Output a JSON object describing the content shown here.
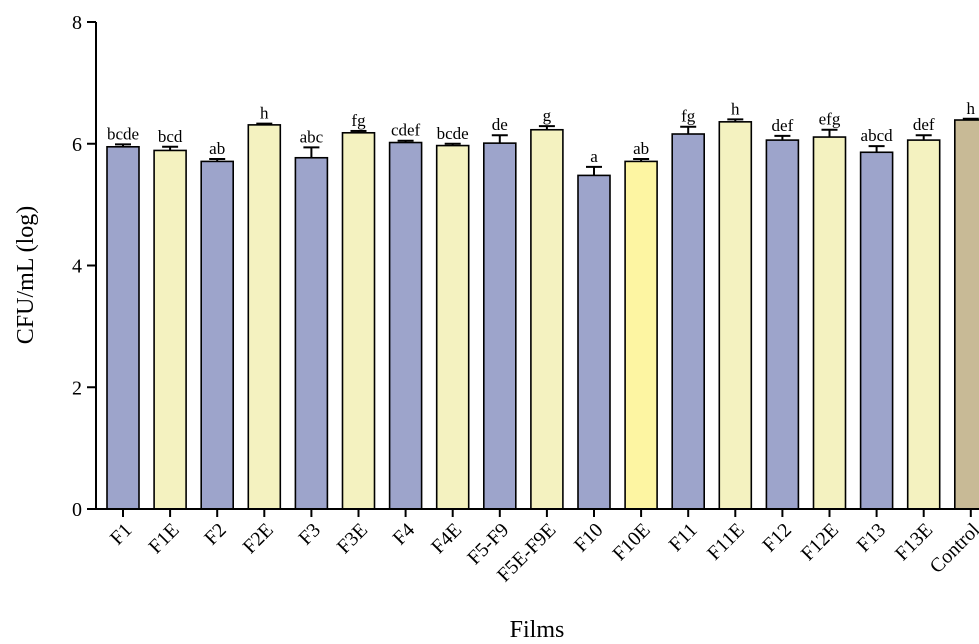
{
  "chart_data": {
    "type": "bar",
    "title": "",
    "xlabel": "Films",
    "ylabel": "CFU/mL (log)",
    "ylim": [
      0,
      8
    ],
    "yticks": [
      0,
      2,
      4,
      6,
      8
    ],
    "grid": false,
    "legend": "none",
    "categories": [
      "F1",
      "F1E",
      "F2",
      "F2E",
      "F3",
      "F3E",
      "F4",
      "F4E",
      "F5-F9",
      "F5E-F9E",
      "F10",
      "F10E",
      "F11",
      "F11E",
      "F12",
      "F12E",
      "F13",
      "F13E",
      "Control"
    ],
    "values": [
      5.95,
      5.89,
      5.71,
      6.31,
      5.77,
      6.18,
      6.02,
      5.97,
      6.01,
      6.23,
      5.48,
      5.71,
      6.16,
      6.36,
      6.06,
      6.11,
      5.86,
      6.06,
      6.39
    ],
    "errors": [
      0.04,
      0.06,
      0.04,
      0.02,
      0.17,
      0.03,
      0.03,
      0.03,
      0.13,
      0.06,
      0.14,
      0.04,
      0.12,
      0.04,
      0.07,
      0.12,
      0.1,
      0.08,
      0.02
    ],
    "significance": [
      "bcde",
      "bcd",
      "ab",
      "h",
      "abc",
      "fg",
      "cdef",
      "bcde",
      "de",
      "g",
      "a",
      "ab",
      "fg",
      "h",
      "def",
      "efg",
      "abcd",
      "def",
      "h"
    ],
    "bar_colors": [
      "#9da4cb",
      "#f4f2c0",
      "#9da4cb",
      "#f4f2c0",
      "#9da4cb",
      "#f4f2c0",
      "#9da4cb",
      "#f4f2c0",
      "#9da4cb",
      "#f4f2c0",
      "#9da4cb",
      "#fdf5a2",
      "#9da4cb",
      "#f4f2c0",
      "#9da4cb",
      "#f4f2c0",
      "#9da4cb",
      "#f4f2c0",
      "#c8ba96"
    ]
  }
}
